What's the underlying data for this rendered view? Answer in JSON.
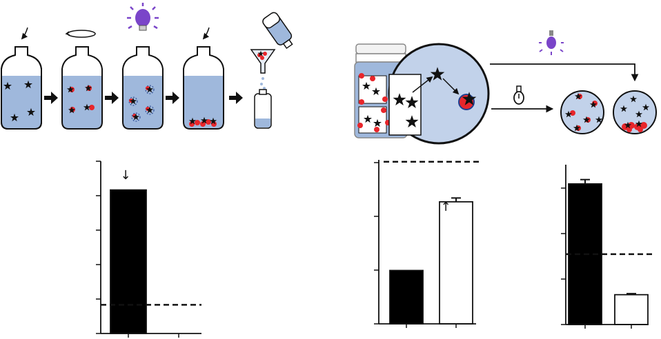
{
  "colors": {
    "liquid": "#9fb8dc",
    "bottle_outline": "#111111",
    "particle_red": "#e8262b",
    "lamp_purple": "#7a45c9",
    "bar_filled": "#000000",
    "bar_open": "#ffffff",
    "background": "#ffffff"
  },
  "icons": {
    "stir_arrow": "curved-arrow-icon",
    "rotate": "rotate-arrow-icon",
    "uv_lamp": "uv-bulb-icon",
    "visible_lamp": "bulb-icon",
    "step_arrow": "right-arrow-icon",
    "pour": "pouring-bottle-icon",
    "funnel": "funnel-icon",
    "star": "star-icon",
    "jar": "jar-icon"
  },
  "process_steps": [
    "add",
    "rotate",
    "irradiate",
    "add",
    "filter"
  ],
  "chart_data": [
    {
      "type": "bar",
      "categories": [
        "",
        ""
      ],
      "values": [
        100,
        0
      ],
      "reference_line": 20,
      "annotation": "↓",
      "ylim": [
        0,
        120
      ],
      "xlabel": "",
      "ylabel": "",
      "title": "",
      "bar_styles": [
        "filled",
        "open"
      ],
      "grid": false
    },
    {
      "type": "bar",
      "categories": [
        "",
        ""
      ],
      "values": [
        28,
        64
      ],
      "errors": [
        0,
        2
      ],
      "reference_line": 85,
      "annotation": "↑",
      "ylim": [
        0,
        86
      ],
      "xlabel": "",
      "ylabel": "",
      "title": "",
      "bar_styles": [
        "filled",
        "open"
      ],
      "grid": false
    },
    {
      "type": "bar",
      "categories": [
        "",
        ""
      ],
      "values": [
        66,
        14
      ],
      "errors": [
        2,
        0.5
      ],
      "reference_line": 33,
      "annotation": "",
      "ylim": [
        0,
        75
      ],
      "xlabel": "",
      "ylabel": "",
      "title": "",
      "bar_styles": [
        "filled",
        "open"
      ],
      "grid": false
    }
  ]
}
